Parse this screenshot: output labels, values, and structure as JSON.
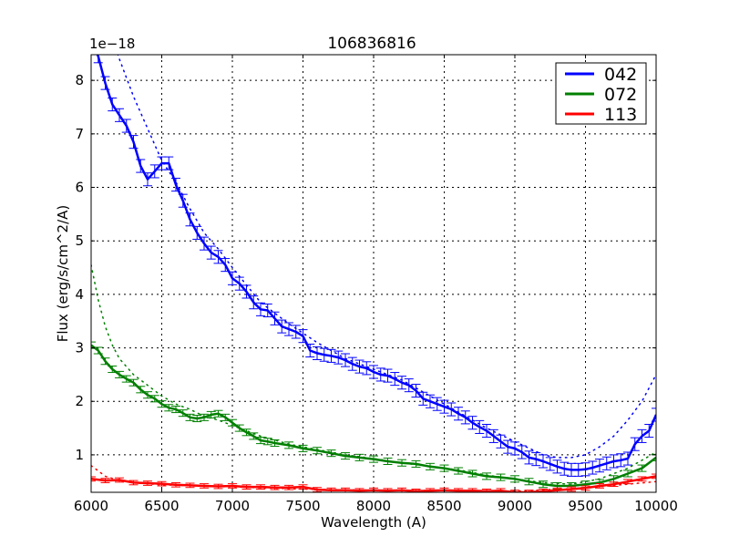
{
  "chart_data": {
    "type": "line",
    "title": "106836816",
    "xlabel": "Wavelength (A)",
    "ylabel": "Flux (erg/s/cm^2/A)",
    "y_offset_label": "1e−18",
    "xlim": [
      6000,
      10000
    ],
    "ylim": [
      0.3,
      8.48
    ],
    "x_ticks": [
      6000,
      6500,
      7000,
      7500,
      8000,
      8500,
      9000,
      9500,
      10000
    ],
    "y_ticks": [
      1,
      2,
      3,
      4,
      5,
      6,
      7,
      8
    ],
    "grid": true,
    "legend_position": "upper right",
    "series": [
      {
        "name": "042",
        "color": "#0000ff",
        "x": [
          6000,
          6050,
          6100,
          6150,
          6200,
          6250,
          6300,
          6350,
          6400,
          6450,
          6500,
          6550,
          6600,
          6650,
          6700,
          6750,
          6800,
          6850,
          6900,
          6950,
          7000,
          7050,
          7100,
          7150,
          7200,
          7250,
          7300,
          7350,
          7400,
          7450,
          7500,
          7550,
          7600,
          7650,
          7700,
          7750,
          7800,
          7850,
          7900,
          7950,
          8000,
          8050,
          8100,
          8150,
          8200,
          8250,
          8300,
          8350,
          8400,
          8450,
          8500,
          8550,
          8600,
          8650,
          8700,
          8750,
          8800,
          8850,
          8900,
          8950,
          9000,
          9050,
          9100,
          9150,
          9200,
          9250,
          9300,
          9350,
          9400,
          9450,
          9500,
          9550,
          9600,
          9650,
          9700,
          9750,
          9800,
          9850,
          9900,
          9950,
          10000
        ],
        "values": [
          8.75,
          8.45,
          7.95,
          7.55,
          7.35,
          7.15,
          6.85,
          6.4,
          6.15,
          6.3,
          6.45,
          6.45,
          6.05,
          5.75,
          5.4,
          5.15,
          4.95,
          4.78,
          4.7,
          4.55,
          4.3,
          4.2,
          4.05,
          3.85,
          3.72,
          3.7,
          3.55,
          3.4,
          3.35,
          3.3,
          3.22,
          2.95,
          2.9,
          2.87,
          2.85,
          2.82,
          2.77,
          2.7,
          2.65,
          2.62,
          2.55,
          2.5,
          2.48,
          2.42,
          2.35,
          2.3,
          2.2,
          2.05,
          2.0,
          1.95,
          1.9,
          1.85,
          1.77,
          1.7,
          1.6,
          1.52,
          1.45,
          1.35,
          1.25,
          1.15,
          1.12,
          1.05,
          0.95,
          0.92,
          0.88,
          0.83,
          0.78,
          0.74,
          0.72,
          0.72,
          0.73,
          0.76,
          0.8,
          0.84,
          0.88,
          0.9,
          0.93,
          1.2,
          1.35,
          1.45,
          1.75
        ],
        "error": 0.12,
        "model": {
          "x": [
            6000,
            6100,
            6200,
            6300,
            6400,
            6500,
            6600,
            6700,
            6800,
            6900,
            7000,
            7200,
            7400,
            7600,
            7800,
            8000,
            8200,
            8400,
            8600,
            8800,
            9000,
            9200,
            9300,
            9400,
            9500,
            9600,
            9700,
            9800,
            9900,
            10000
          ],
          "values": [
            10.2,
            9.2,
            8.4,
            7.7,
            7.1,
            6.5,
            6.1,
            5.6,
            5.15,
            4.85,
            4.5,
            3.85,
            3.45,
            3.1,
            2.8,
            2.6,
            2.4,
            2.1,
            1.8,
            1.5,
            1.25,
            1.0,
            0.95,
            0.95,
            1.0,
            1.15,
            1.35,
            1.65,
            2.0,
            2.5
          ]
        }
      },
      {
        "name": "072",
        "color": "#008000",
        "x": [
          6000,
          6050,
          6100,
          6150,
          6200,
          6250,
          6300,
          6350,
          6400,
          6450,
          6500,
          6550,
          6600,
          6650,
          6700,
          6750,
          6800,
          6850,
          6900,
          6950,
          7000,
          7050,
          7100,
          7150,
          7200,
          7250,
          7300,
          7400,
          7500,
          7600,
          7700,
          7800,
          7900,
          8000,
          8100,
          8200,
          8300,
          8400,
          8500,
          8600,
          8700,
          8800,
          8900,
          9000,
          9100,
          9200,
          9300,
          9400,
          9500,
          9600,
          9700,
          9800,
          9900,
          10000
        ],
        "values": [
          3.05,
          2.95,
          2.75,
          2.6,
          2.5,
          2.42,
          2.35,
          2.22,
          2.12,
          2.05,
          1.95,
          1.88,
          1.85,
          1.78,
          1.7,
          1.68,
          1.7,
          1.75,
          1.77,
          1.7,
          1.6,
          1.5,
          1.42,
          1.35,
          1.27,
          1.25,
          1.22,
          1.18,
          1.12,
          1.08,
          1.03,
          0.98,
          0.95,
          0.92,
          0.88,
          0.85,
          0.83,
          0.78,
          0.75,
          0.7,
          0.65,
          0.6,
          0.58,
          0.55,
          0.5,
          0.45,
          0.42,
          0.42,
          0.45,
          0.48,
          0.55,
          0.65,
          0.75,
          0.95
        ],
        "error": 0.06,
        "model": {
          "x": [
            6000,
            6050,
            6100,
            6150,
            6200,
            6300,
            6400,
            6500,
            6600,
            6700,
            6800,
            6900,
            7000,
            7200,
            7400,
            7600,
            7800,
            8000,
            8200,
            8400,
            8600,
            8800,
            9000,
            9200,
            9400,
            9600,
            9800,
            10000
          ],
          "values": [
            4.55,
            3.9,
            3.4,
            3.05,
            2.8,
            2.5,
            2.3,
            2.1,
            1.95,
            1.85,
            1.72,
            1.65,
            1.55,
            1.35,
            1.2,
            1.1,
            1.0,
            0.93,
            0.85,
            0.78,
            0.72,
            0.62,
            0.55,
            0.48,
            0.45,
            0.55,
            0.75,
            1.05
          ]
        }
      },
      {
        "name": "113",
        "color": "#ff0000",
        "x": [
          6000,
          6100,
          6200,
          6300,
          6400,
          6500,
          6600,
          6700,
          6800,
          6900,
          7000,
          7100,
          7200,
          7300,
          7400,
          7500,
          7600,
          7700,
          7800,
          7900,
          8000,
          8100,
          8200,
          8300,
          8400,
          8500,
          8600,
          8700,
          8800,
          8900,
          9000,
          9100,
          9200,
          9300,
          9400,
          9500,
          9600,
          9700,
          9800,
          9900,
          10000
        ],
        "values": [
          0.55,
          0.52,
          0.53,
          0.48,
          0.47,
          0.46,
          0.44,
          0.43,
          0.42,
          0.41,
          0.42,
          0.4,
          0.4,
          0.39,
          0.39,
          0.4,
          0.35,
          0.34,
          0.34,
          0.33,
          0.34,
          0.33,
          0.34,
          0.32,
          0.33,
          0.34,
          0.33,
          0.33,
          0.32,
          0.33,
          0.3,
          0.3,
          0.32,
          0.34,
          0.36,
          0.38,
          0.42,
          0.45,
          0.5,
          0.55,
          0.6
        ],
        "error": 0.04,
        "model": {
          "x": [
            6000,
            6050,
            6100,
            6200,
            6300,
            6500,
            7000,
            7500,
            8000,
            8500,
            9000,
            9500,
            10000
          ],
          "values": [
            0.8,
            0.7,
            0.6,
            0.52,
            0.48,
            0.44,
            0.4,
            0.36,
            0.34,
            0.33,
            0.32,
            0.38,
            0.5
          ]
        }
      }
    ]
  }
}
